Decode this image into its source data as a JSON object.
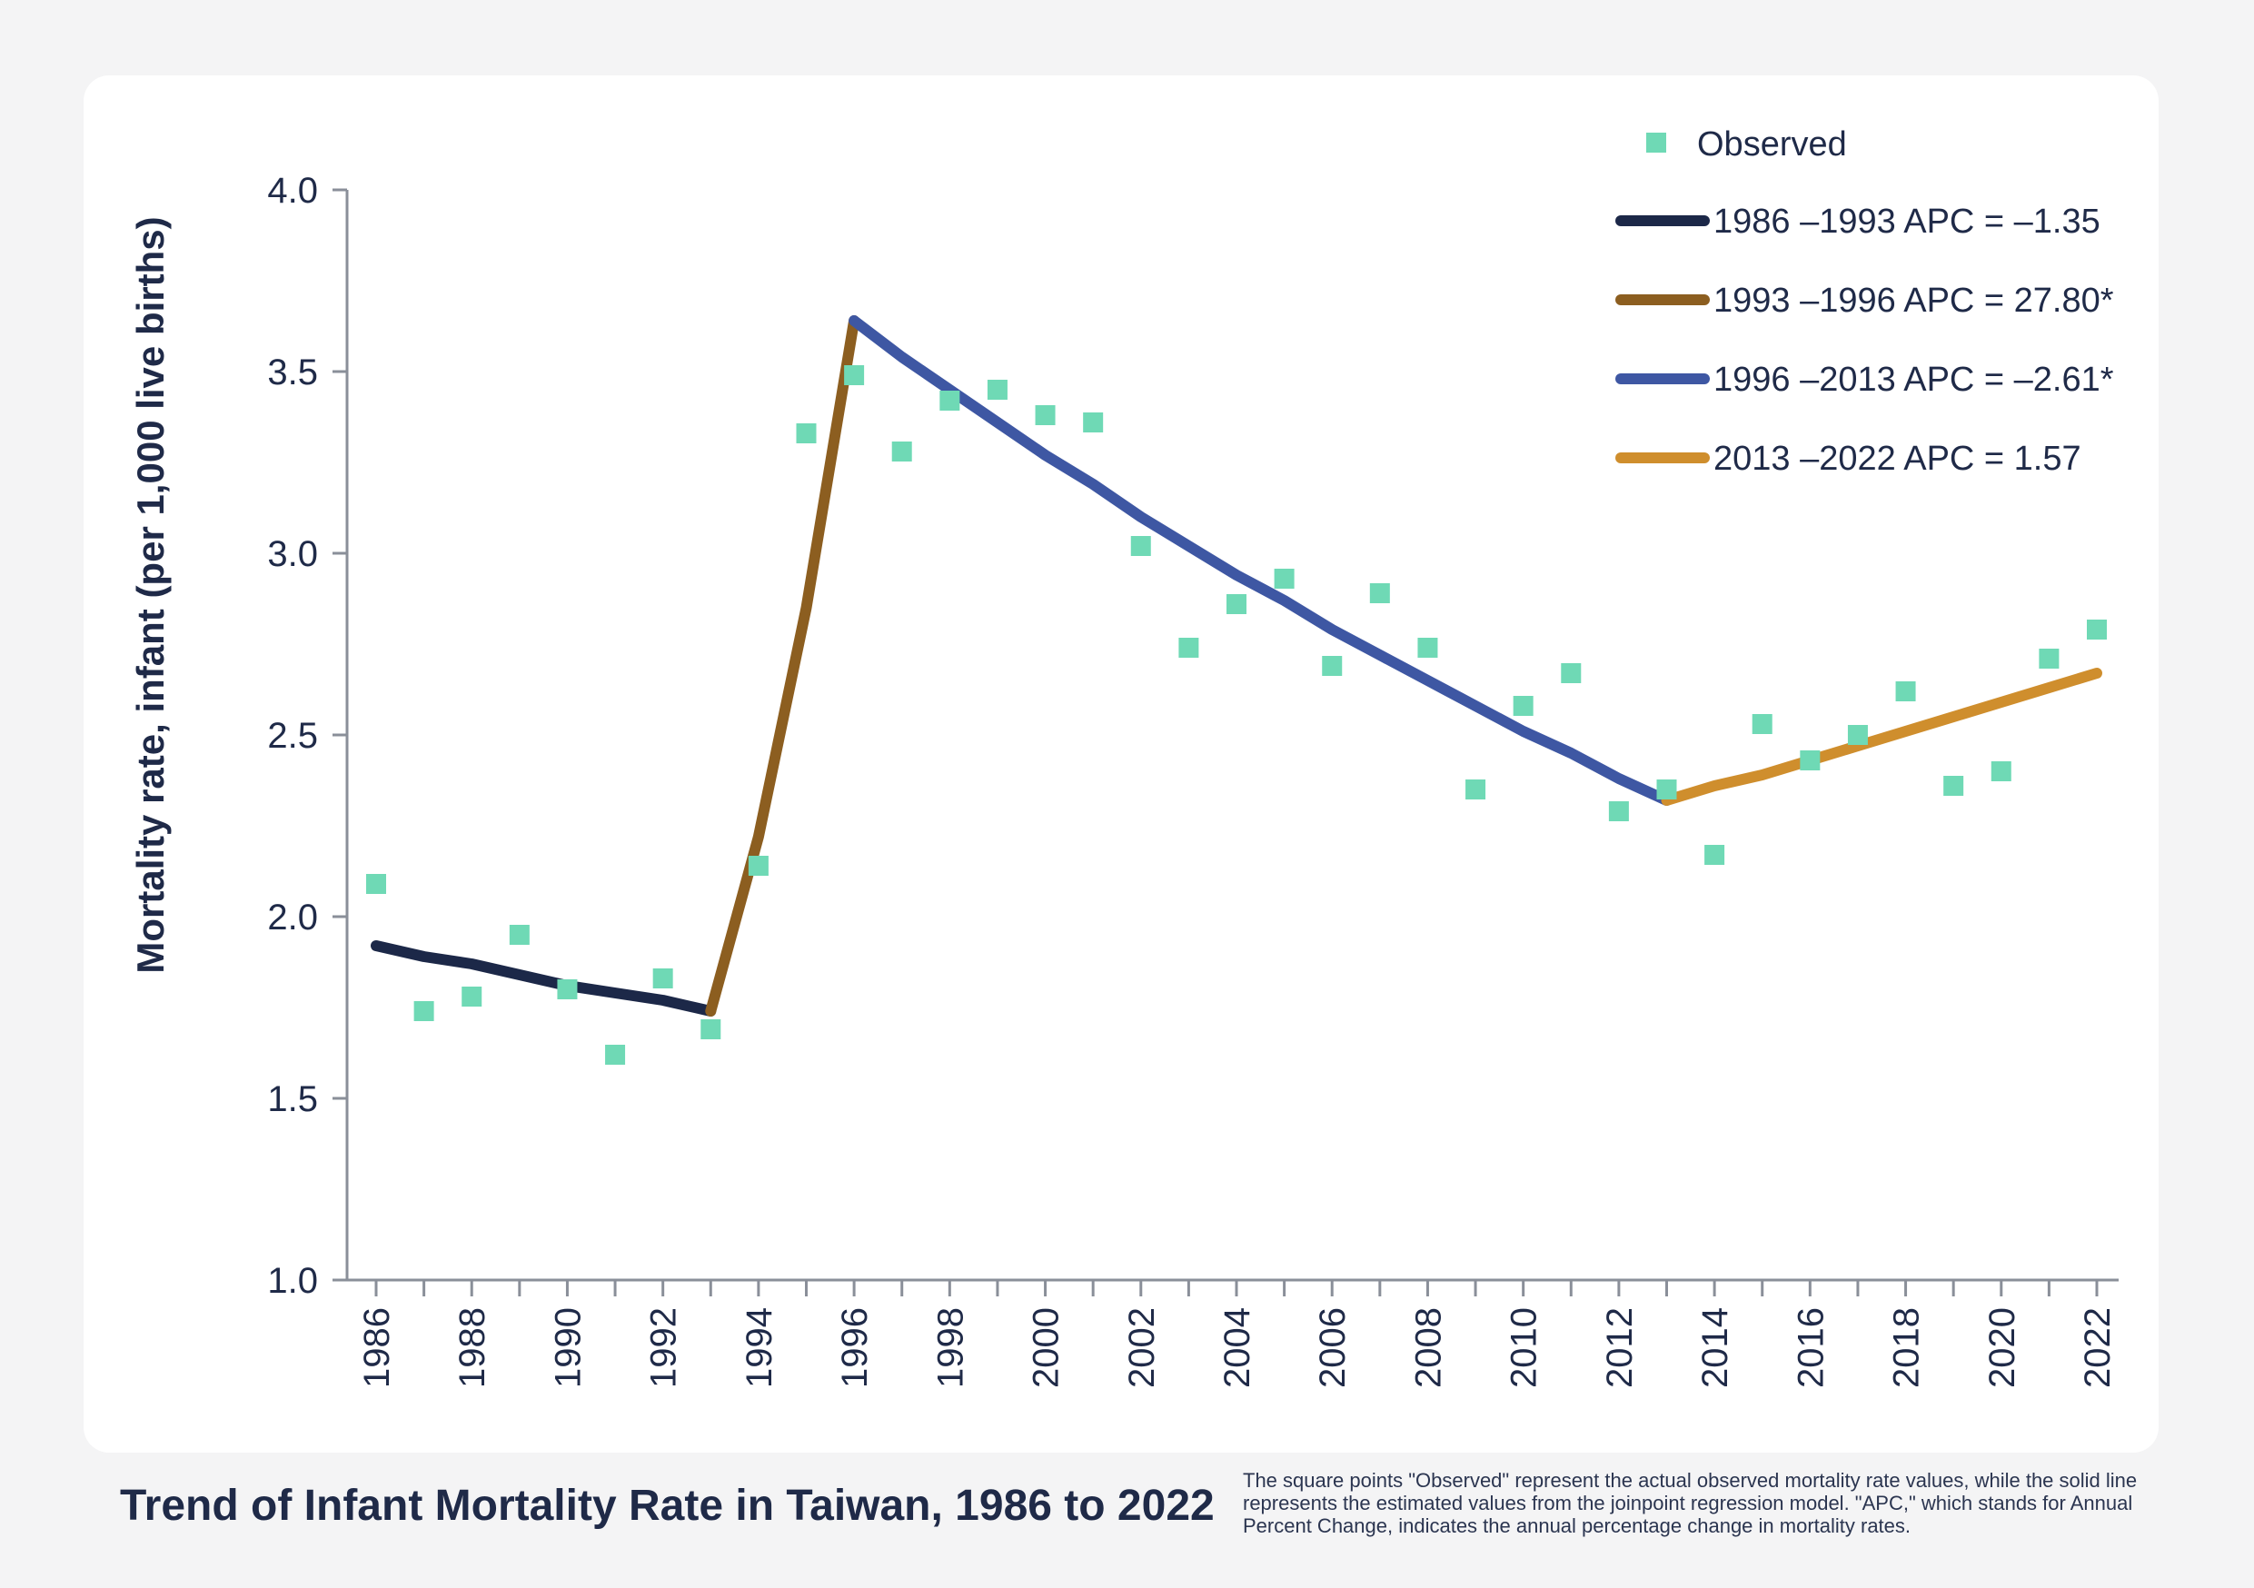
{
  "chart_data": {
    "type": "line",
    "title": "Trend of Infant Mortality Rate in Taiwan, 1986 to 2022",
    "ylabel": "Mortality rate, infant (per 1,000 live births)",
    "xlabel": "",
    "ylim": [
      1.0,
      4.0
    ],
    "xlim": [
      1986,
      2022
    ],
    "y_ticks": [
      "1.0",
      "1.5",
      "2.0",
      "2.5",
      "3.0",
      "3.5",
      "4.0"
    ],
    "x_ticks": [
      "1986",
      "1988",
      "1990",
      "1992",
      "1994",
      "1996",
      "1998",
      "2000",
      "2002",
      "2004",
      "2006",
      "2008",
      "2010",
      "2012",
      "2014",
      "2016",
      "2018",
      "2020",
      "2022"
    ],
    "legend_position": "top-right",
    "grid": false,
    "observed": {
      "name": "Observed",
      "marker": "square",
      "color": "#6fd9b5",
      "x": [
        1986,
        1987,
        1988,
        1989,
        1990,
        1991,
        1992,
        1993,
        1994,
        1995,
        1996,
        1997,
        1998,
        1999,
        2000,
        2001,
        2002,
        2003,
        2004,
        2005,
        2006,
        2007,
        2008,
        2009,
        2010,
        2011,
        2012,
        2013,
        2014,
        2015,
        2016,
        2017,
        2018,
        2019,
        2020,
        2021,
        2022
      ],
      "y": [
        2.09,
        1.74,
        1.78,
        1.95,
        1.8,
        1.62,
        1.83,
        1.69,
        2.14,
        3.33,
        3.49,
        3.28,
        3.42,
        3.45,
        3.38,
        3.36,
        3.02,
        2.74,
        2.86,
        2.93,
        2.69,
        2.89,
        2.74,
        2.35,
        2.58,
        2.67,
        2.29,
        2.35,
        2.17,
        2.53,
        2.43,
        2.5,
        2.62,
        2.36,
        2.4,
        2.71,
        2.79
      ]
    },
    "series": [
      {
        "name": "1986 –1993 APC = –1.35",
        "color": "#1c2848",
        "x": [
          1986,
          1987,
          1988,
          1989,
          1990,
          1991,
          1992,
          1993
        ],
        "y": [
          1.92,
          1.89,
          1.87,
          1.84,
          1.81,
          1.79,
          1.77,
          1.74
        ]
      },
      {
        "name": "1993 –1996 APC = 27.80*",
        "color": "#8c5e20",
        "x": [
          1993,
          1994,
          1995,
          1996
        ],
        "y": [
          1.74,
          2.22,
          2.85,
          3.64
        ]
      },
      {
        "name": "1996 –2013 APC = –2.61*",
        "color": "#3e57a3",
        "x": [
          1996,
          1997,
          1998,
          1999,
          2000,
          2001,
          2002,
          2003,
          2004,
          2005,
          2006,
          2007,
          2008,
          2009,
          2010,
          2011,
          2012,
          2013
        ],
        "y": [
          3.64,
          3.54,
          3.45,
          3.36,
          3.27,
          3.19,
          3.1,
          3.02,
          2.94,
          2.87,
          2.79,
          2.72,
          2.65,
          2.58,
          2.51,
          2.45,
          2.38,
          2.32
        ]
      },
      {
        "name": "2013 –2022 APC = 1.57",
        "color": "#cf8e2d",
        "x": [
          2013,
          2014,
          2015,
          2016,
          2017,
          2018,
          2019,
          2020,
          2021,
          2022
        ],
        "y": [
          2.32,
          2.36,
          2.39,
          2.43,
          2.47,
          2.51,
          2.55,
          2.59,
          2.63,
          2.67
        ]
      }
    ]
  },
  "footer": {
    "title": "Trend of Infant Mortality Rate in Taiwan, 1986 to 2022",
    "note": "The square points \"Observed\" represent the actual observed mortality rate values, while the solid line represents the estimated values from the joinpoint regression model. \"APC,\" which stands for Annual Percent Change, indicates the annual percentage change in mortality rates."
  }
}
